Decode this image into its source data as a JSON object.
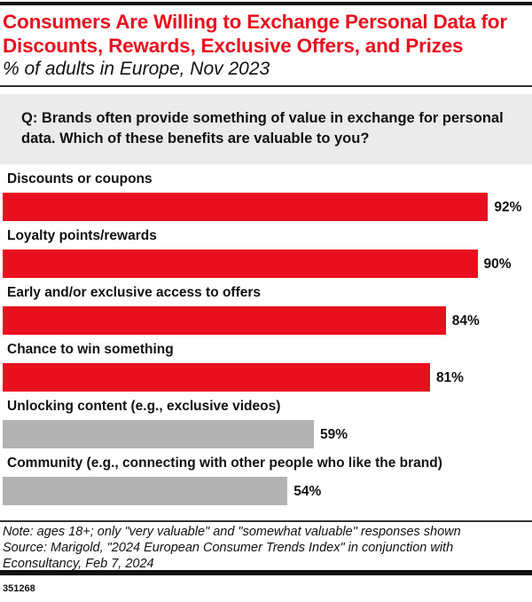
{
  "chart_data": {
    "type": "bar",
    "orientation": "horizontal",
    "title": "Consumers Are Willing to Exchange Personal Data for Discounts, Rewards, Exclusive Offers, and Prizes",
    "subtitle": "% of adults in Europe, Nov 2023",
    "question": "Q: Brands often provide something of value in exchange for personal data. Which of these benefits are valuable to you?",
    "categories": [
      "Discounts or coupons",
      "Loyalty points/rewards",
      "Early and/or exclusive access to offers",
      "Chance to win something",
      "Unlocking content (e.g., exclusive videos)",
      "Community (e.g., connecting with other people who like the brand)"
    ],
    "values": [
      92,
      90,
      84,
      81,
      59,
      54
    ],
    "value_labels": [
      "92%",
      "90%",
      "84%",
      "81%",
      "59%",
      "54%"
    ],
    "bar_colors": [
      "#e8101f",
      "#e8101f",
      "#e8101f",
      "#e8101f",
      "#b3b3b3",
      "#b3b3b3"
    ],
    "xlim": [
      0,
      100
    ],
    "grid": false
  },
  "footer": {
    "note": "Note: ages 18+; only \"very valuable\" and \"somewhat valuable\" responses shown",
    "source": "Source: Marigold, \"2024 European Consumer Trends Index\" in conjunction with Econsultancy, Feb 7, 2024",
    "chart_id": "351268"
  }
}
